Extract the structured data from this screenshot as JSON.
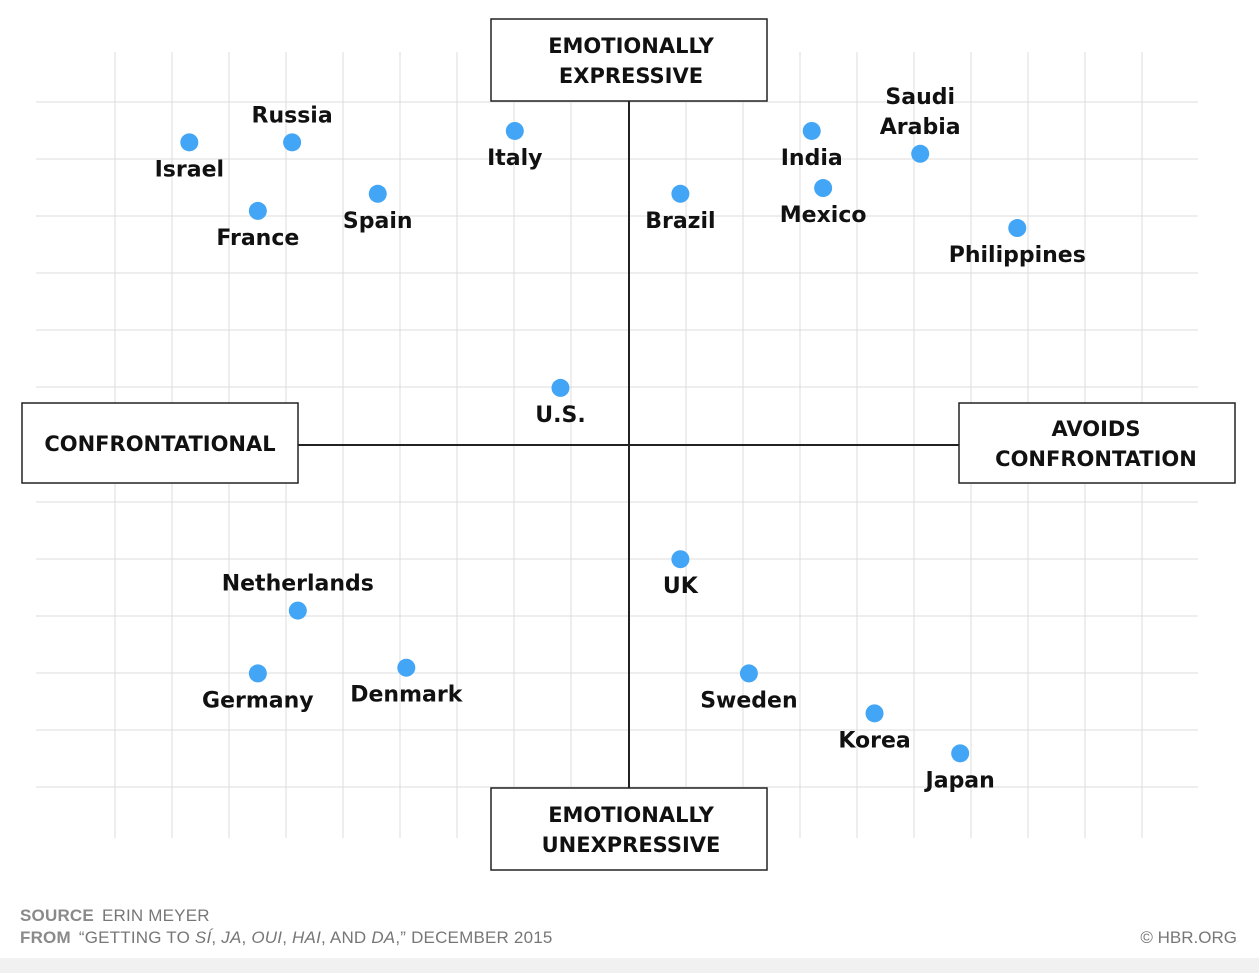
{
  "chart_data": {
    "type": "scatter",
    "xlim": [
      -9.5,
      10.0
    ],
    "ylim": [
      -7.5,
      7.5
    ],
    "grid": true,
    "axis_labels": {
      "top": [
        "EMOTIONALLY",
        "EXPRESSIVE"
      ],
      "bottom": [
        "EMOTIONALLY",
        "UNEXPRESSIVE"
      ],
      "left": [
        "CONFRONTATIONAL"
      ],
      "right": [
        "AVOIDS",
        "CONFRONTATION"
      ]
    },
    "points": [
      {
        "name": "Israel",
        "x": -7.7,
        "y": 5.3,
        "label_pos": "below"
      },
      {
        "name": "Russia",
        "x": -5.9,
        "y": 5.3,
        "label_pos": "above"
      },
      {
        "name": "France",
        "x": -6.5,
        "y": 4.1,
        "label_pos": "below"
      },
      {
        "name": "Spain",
        "x": -4.4,
        "y": 4.4,
        "label_pos": "below"
      },
      {
        "name": "Italy",
        "x": -2.0,
        "y": 5.5,
        "label_pos": "below"
      },
      {
        "name": "Brazil",
        "x": 0.9,
        "y": 4.4,
        "label_pos": "below"
      },
      {
        "name": "India",
        "x": 3.2,
        "y": 5.5,
        "label_pos": "below"
      },
      {
        "name": "Mexico",
        "x": 3.4,
        "y": 4.5,
        "label_pos": "below"
      },
      {
        "name": "Saudi Arabia",
        "x": 5.1,
        "y": 5.1,
        "label_pos": "above"
      },
      {
        "name": "Philippines",
        "x": 6.8,
        "y": 3.8,
        "label_pos": "below"
      },
      {
        "name": "U.S.",
        "x": -1.2,
        "y": 1.0,
        "label_pos": "below"
      },
      {
        "name": "UK",
        "x": 0.9,
        "y": -2.0,
        "label_pos": "below"
      },
      {
        "name": "Netherlands",
        "x": -5.8,
        "y": -2.9,
        "label_pos": "above"
      },
      {
        "name": "Germany",
        "x": -6.5,
        "y": -4.0,
        "label_pos": "below"
      },
      {
        "name": "Denmark",
        "x": -3.9,
        "y": -3.9,
        "label_pos": "below"
      },
      {
        "name": "Sweden",
        "x": 2.1,
        "y": -4.0,
        "label_pos": "below"
      },
      {
        "name": "Korea",
        "x": 4.3,
        "y": -4.7,
        "label_pos": "below"
      },
      {
        "name": "Japan",
        "x": 5.8,
        "y": -5.4,
        "label_pos": "below"
      }
    ],
    "point_color": "#42a5f5",
    "grid_color": "#dcdcdc",
    "axis_color": "#222222"
  },
  "footer": {
    "source_label": "SOURCE",
    "source_value": "ERIN MEYER",
    "from_label": "FROM",
    "from_pre": "“GETTING TO ",
    "from_si": "SÍ",
    "from_sep1": ", ",
    "from_ja": "JA",
    "from_sep2": ", ",
    "from_oui": "OUI",
    "from_sep3": ", ",
    "from_hai": "HAI",
    "from_and": ", AND ",
    "from_da": "DA",
    "from_post": ",” DECEMBER 2015",
    "copyright": "© HBR.ORG"
  }
}
